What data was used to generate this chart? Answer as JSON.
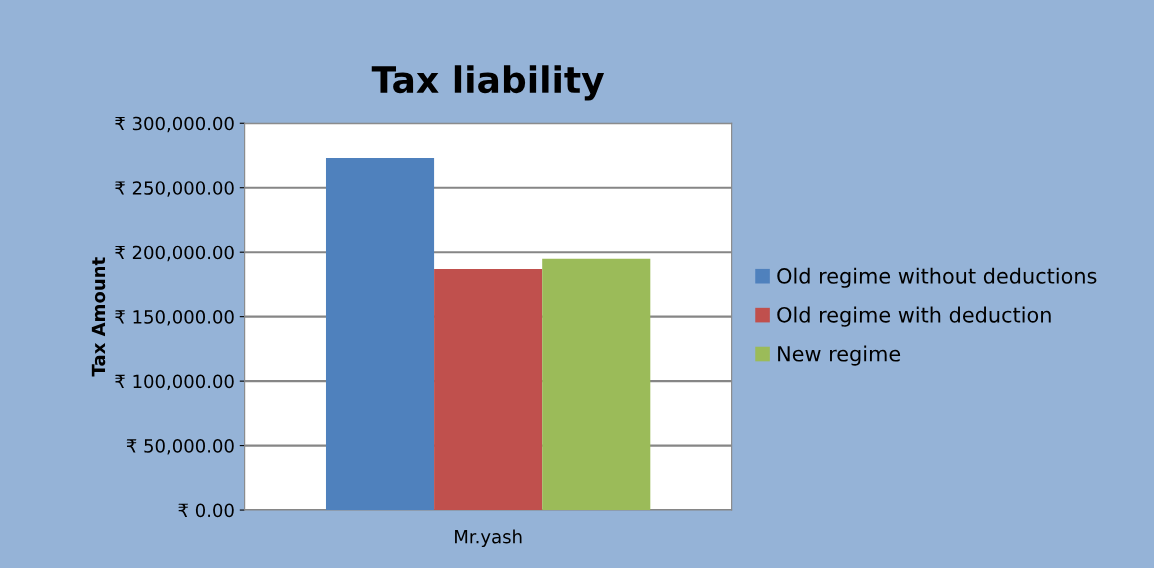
{
  "chart_data": {
    "type": "bar",
    "title": "Tax liability",
    "ylabel": "Tax Amount",
    "categories": [
      "Mr.yash"
    ],
    "series": [
      {
        "name": "Old regime without deductions",
        "color": "#4f81bd",
        "values": [
          273000
        ]
      },
      {
        "name": "Old regime with deduction",
        "color": "#c0504d",
        "values": [
          187000
        ]
      },
      {
        "name": "New regime",
        "color": "#9bbb59",
        "values": [
          195000
        ]
      }
    ],
    "ylim": [
      0,
      300000
    ],
    "yticks": [
      {
        "value": 0,
        "label": "₹ 0.00"
      },
      {
        "value": 50000,
        "label": "₹ 50,000.00"
      },
      {
        "value": 100000,
        "label": "₹ 100,000.00"
      },
      {
        "value": 150000,
        "label": "₹ 150,000.00"
      },
      {
        "value": 200000,
        "label": "₹ 200,000.00"
      },
      {
        "value": 250000,
        "label": "₹ 250,000.00"
      },
      {
        "value": 300000,
        "label": "₹ 300,000.00"
      }
    ],
    "grid": "y",
    "legend": "right"
  }
}
